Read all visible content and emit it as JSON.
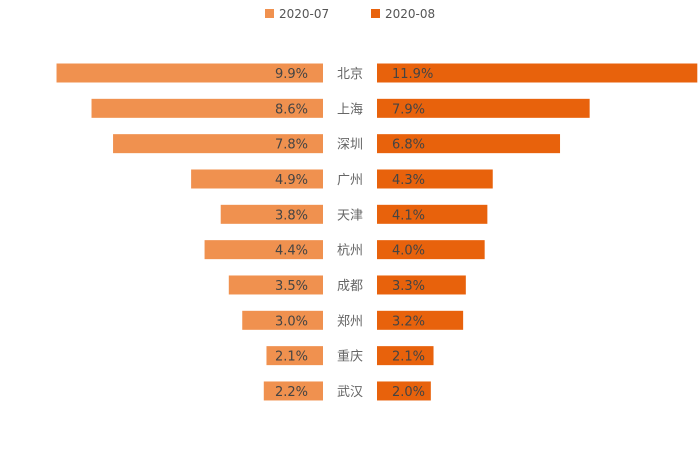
{
  "chart_data": {
    "type": "bar",
    "orientation": "butterfly",
    "categories": [
      "北京",
      "上海",
      "深圳",
      "广州",
      "天津",
      "杭州",
      "成都",
      "郑州",
      "重庆",
      "武汉"
    ],
    "series": [
      {
        "name": "2020-07",
        "values": [
          9.9,
          8.6,
          7.8,
          4.9,
          3.8,
          4.4,
          3.5,
          3.0,
          2.1,
          2.2
        ],
        "labels": [
          "9.9%",
          "8.6%",
          "7.8%",
          "4.9%",
          "3.8%",
          "4.4%",
          "3.5%",
          "3.0%",
          "2.1%",
          "2.2%"
        ],
        "color": "#F0914F"
      },
      {
        "name": "2020-08",
        "values": [
          11.9,
          7.9,
          6.8,
          4.3,
          4.1,
          4.0,
          3.3,
          3.2,
          2.1,
          2.0
        ],
        "labels": [
          "11.9%",
          "7.9%",
          "6.8%",
          "4.3%",
          "4.1%",
          "4.0%",
          "3.3%",
          "3.2%",
          "2.1%",
          "2.0%"
        ],
        "color": "#E8620C"
      }
    ],
    "legend": "top-center",
    "grid": false,
    "xlim": [
      0,
      12
    ]
  }
}
